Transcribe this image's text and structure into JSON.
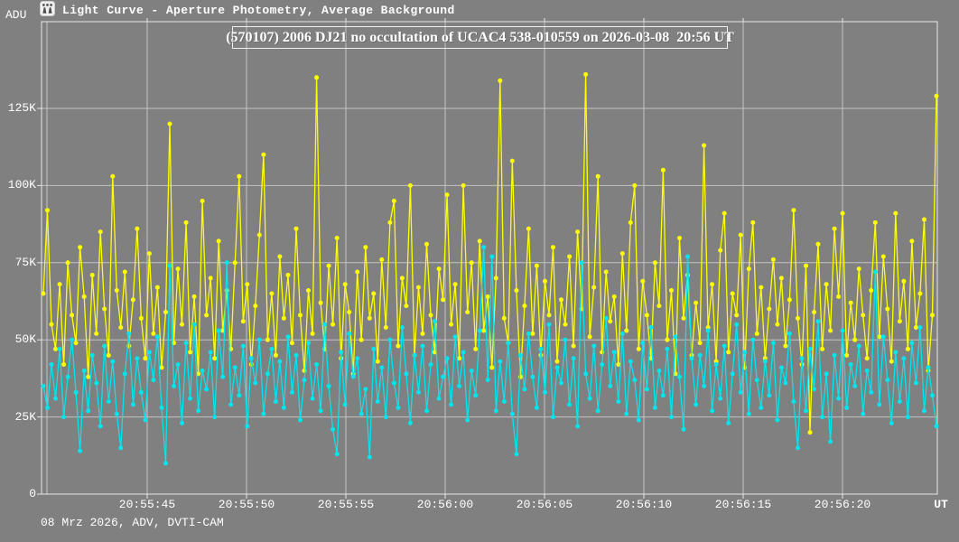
{
  "window": {
    "corner_label": "ADU",
    "icon": "app-icon",
    "title": "Light Curve - Aperture Photometry, Average Background"
  },
  "chart_title": "(570107) 2006 DJ21 no occultation of UCAC4 538-010559 on 2026-03-08  20:56 UT",
  "footer": "08 Mrz 2026, ADV, DVTI-CAM",
  "colors": {
    "background": "#808080",
    "grid": "#c3c3c3",
    "border": "#e6e6e6",
    "text": "#ffffff",
    "target_series": "#ffff00",
    "comparison_series": "#00e5ee"
  },
  "chart_data": {
    "type": "line",
    "title": "(570107) 2006 DJ21 no occultation of UCAC4 538-010559 on 2026-03-08  20:56 UT",
    "ylabel": "ADU",
    "xlabel": "UT",
    "x_unit_label": "UT",
    "grid": true,
    "legend": "none",
    "ylim_adu": [
      0,
      153000
    ],
    "y_ticks": [
      "0",
      "25K",
      "50K",
      "75K",
      "100K",
      "125K"
    ],
    "y_tick_values_k": [
      0,
      25,
      50,
      75,
      100,
      125
    ],
    "x_ticks": [
      "20:55:45",
      "20:55:50",
      "20:55:55",
      "20:56:00",
      "20:56:05",
      "20:56:10",
      "20:56:15",
      "20:56:20"
    ],
    "x_start_time": "20:55:40",
    "points_per_series": 220,
    "values_unit": "kADU",
    "series": [
      {
        "name": "target-aperture-intensity",
        "color": "#ffff00",
        "marker": "circle",
        "values_kadu": [
          65,
          92,
          55,
          47,
          68,
          42,
          75,
          58,
          49,
          80,
          64,
          38,
          71,
          52,
          85,
          60,
          45,
          103,
          66,
          54,
          72,
          48,
          63,
          86,
          57,
          44,
          78,
          52,
          67,
          41,
          59,
          120,
          49,
          73,
          55,
          88,
          46,
          64,
          39,
          95,
          58,
          70,
          44,
          82,
          53,
          66,
          47,
          75,
          103,
          56,
          68,
          42,
          61,
          84,
          110,
          50,
          65,
          45,
          77,
          57,
          71,
          49,
          86,
          58,
          40,
          66,
          52,
          135,
          62,
          47,
          74,
          55,
          83,
          44,
          68,
          59,
          39,
          72,
          50,
          80,
          57,
          65,
          43,
          76,
          54,
          88,
          95,
          48,
          70,
          61,
          100,
          45,
          67,
          52,
          81,
          58,
          46,
          73,
          63,
          97,
          55,
          68,
          44,
          100,
          59,
          75,
          47,
          82,
          53,
          64,
          41,
          70,
          134,
          57,
          49,
          108,
          66,
          38,
          61,
          86,
          52,
          74,
          45,
          69,
          58,
          80,
          43,
          63,
          55,
          77,
          48,
          85,
          60,
          136,
          51,
          67,
          103,
          46,
          72,
          56,
          64,
          42,
          78,
          53,
          88,
          100,
          47,
          69,
          58,
          44,
          75,
          61,
          105,
          50,
          66,
          39,
          83,
          57,
          71,
          45,
          62,
          49,
          113,
          54,
          68,
          43,
          79,
          91,
          46,
          65,
          58,
          84,
          41,
          73,
          88,
          52,
          67,
          44,
          60,
          76,
          55,
          70,
          48,
          63,
          92,
          57,
          42,
          74,
          20,
          59,
          81,
          47,
          68,
          53,
          86,
          64,
          91,
          45,
          62,
          50,
          73,
          58,
          44,
          66,
          88,
          51,
          77,
          60,
          43,
          91,
          56,
          69,
          47,
          82,
          54,
          65,
          89,
          40,
          58,
          129
        ]
      },
      {
        "name": "comparison-background-intensity",
        "color": "#00e5ee",
        "marker": "circle",
        "values_kadu": [
          35,
          28,
          42,
          31,
          47,
          25,
          38,
          50,
          33,
          14,
          40,
          27,
          45,
          36,
          22,
          48,
          30,
          43,
          26,
          15,
          39,
          52,
          29,
          44,
          33,
          24,
          46,
          37,
          51,
          28,
          10,
          74,
          35,
          42,
          23,
          49,
          31,
          55,
          27,
          40,
          34,
          46,
          25,
          53,
          38,
          75,
          29,
          41,
          32,
          48,
          22,
          44,
          36,
          50,
          26,
          39,
          47,
          30,
          43,
          28,
          51,
          33,
          45,
          24,
          37,
          49,
          31,
          42,
          27,
          55,
          35,
          21,
          13,
          46,
          29,
          52,
          38,
          44,
          26,
          34,
          12,
          47,
          30,
          41,
          25,
          50,
          36,
          28,
          54,
          39,
          23,
          45,
          33,
          48,
          27,
          42,
          56,
          31,
          38,
          44,
          29,
          51,
          35,
          46,
          24,
          40,
          32,
          53,
          80,
          37,
          77,
          27,
          43,
          30,
          49,
          26,
          13,
          45,
          34,
          52,
          38,
          28,
          47,
          33,
          55,
          25,
          41,
          36,
          50,
          29,
          44,
          22,
          75,
          39,
          31,
          48,
          27,
          42,
          57,
          35,
          46,
          30,
          52,
          26,
          43,
          37,
          24,
          49,
          34,
          54,
          28,
          40,
          32,
          47,
          25,
          51,
          38,
          21,
          77,
          44,
          29,
          45,
          35,
          53,
          27,
          42,
          31,
          48,
          23,
          39,
          55,
          33,
          46,
          26,
          50,
          37,
          28,
          43,
          32,
          49,
          24,
          41,
          36,
          52,
          30,
          15,
          44,
          27,
          47,
          34,
          56,
          25,
          39,
          17,
          45,
          31,
          53,
          28,
          42,
          35,
          48,
          26,
          40,
          33,
          72,
          29,
          51,
          37,
          23,
          46,
          30,
          44,
          25,
          49,
          36,
          54,
          27,
          41,
          32,
          22
        ]
      }
    ]
  }
}
